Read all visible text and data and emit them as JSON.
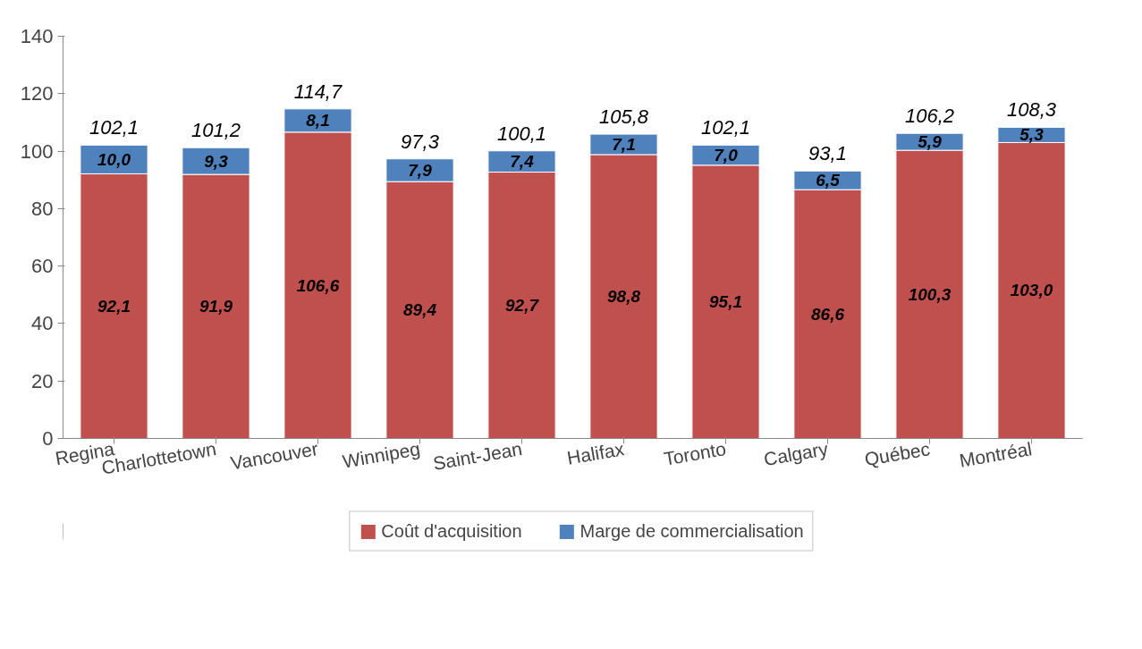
{
  "chart_data": {
    "type": "bar",
    "stacked": true,
    "categories": [
      "Regina",
      "Charlottetown",
      "Vancouver",
      "Winnipeg",
      "Saint-Jean",
      "Halifax",
      "Toronto",
      "Calgary",
      "Québec",
      "Montréal"
    ],
    "series": [
      {
        "name": "Coût d'acquisition",
        "color": "#c0504d",
        "values": [
          92.1,
          91.9,
          106.6,
          89.4,
          92.7,
          98.8,
          95.1,
          86.6,
          100.3,
          103.0
        ],
        "value_labels": [
          "92,1",
          "91,9",
          "106,6",
          "89,4",
          "92,7",
          "98,8",
          "95,1",
          "86,6",
          "100,3",
          "103,0"
        ]
      },
      {
        "name": "Marge de commercialisation",
        "color": "#4f81bd",
        "values": [
          10.0,
          9.3,
          8.1,
          7.9,
          7.4,
          7.1,
          7.0,
          6.5,
          5.9,
          5.3
        ],
        "value_labels": [
          "10,0",
          "9,3",
          "8,1",
          "7,9",
          "7,4",
          "7,1",
          "7,0",
          "6,5",
          "5,9",
          "5,3"
        ]
      }
    ],
    "totals": [
      "102,1",
      "101,2",
      "114,7",
      "97,3",
      "100,1",
      "105,8",
      "102,1",
      "93,1",
      "106,2",
      "108,3"
    ],
    "ylim": [
      0,
      140
    ],
    "yticks": [
      0,
      20,
      40,
      60,
      80,
      100,
      120,
      140
    ],
    "grid": false,
    "legend": "bottom"
  }
}
